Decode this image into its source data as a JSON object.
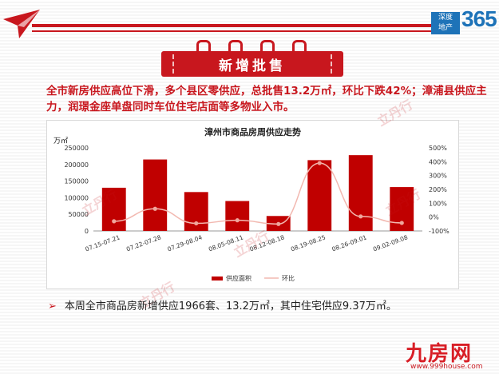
{
  "brand": {
    "tag_line1": "深度",
    "tag_line2": "地产",
    "number": "365"
  },
  "section_title": "新增批售",
  "summary": "全市新房供应高位下滑，多个县区零供应，总批售13.2万㎡，环比下跌42%；漳浦县供应主力，润璟金座单盘同时车位住宅店面等多物业入市。",
  "bullet": "本周全市商品房新增供应1966套、13.2万㎡，其中住宅供应9.37万㎡。",
  "watermark": "立丹行",
  "footer": {
    "logo": "九房网",
    "url": "www.999house.com"
  },
  "colors": {
    "bar": "#c00000",
    "line": "#f2b8b0",
    "accent": "#c8171e"
  },
  "chart_data": {
    "type": "bar",
    "title": "漳州市商品房周供应走势",
    "ylabel": "万㎡",
    "categories": [
      "07.15-07.21",
      "07.22-07.28",
      "07.29-08.04",
      "08.05-08.11",
      "08.12-08.18",
      "08.19-08.25",
      "08.26-09.01",
      "09.02-09.08"
    ],
    "series": [
      {
        "name": "供应面积",
        "type": "bar",
        "axis": "left",
        "values": [
          130000,
          215000,
          117000,
          90000,
          45000,
          213000,
          228000,
          132000
        ]
      },
      {
        "name": "环比",
        "type": "line",
        "axis": "right",
        "values": [
          -0.3,
          0.6,
          -0.45,
          -0.23,
          -0.5,
          3.9,
          0.05,
          -0.42
        ]
      }
    ],
    "ylim_left": [
      0,
      250000
    ],
    "yticks_left": [
      "0",
      "50000",
      "100000",
      "150000",
      "200000",
      "250000"
    ],
    "ylim_right": [
      -1,
      5
    ],
    "yticks_right": [
      "-100%",
      "0%",
      "100%",
      "200%",
      "300%",
      "400%",
      "500%"
    ],
    "legend": "bottom",
    "grid": false
  }
}
